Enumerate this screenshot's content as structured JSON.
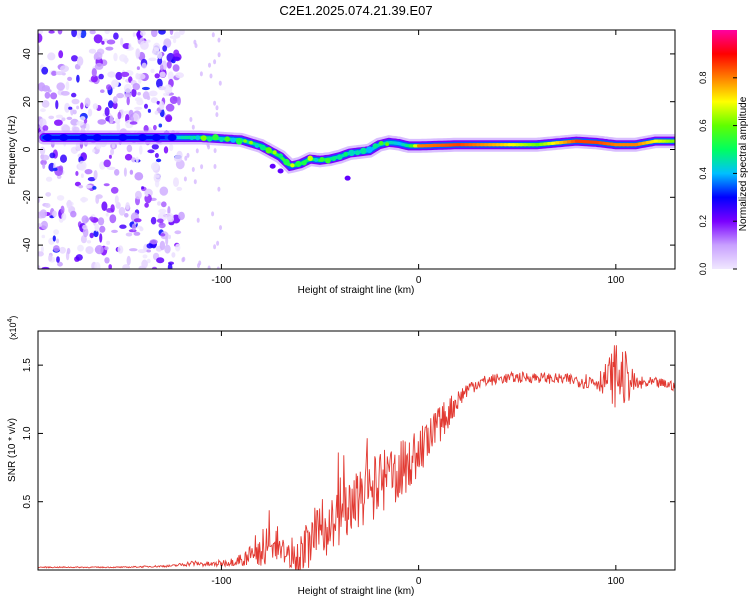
{
  "figure": {
    "title": "C2E1.2025.074.21.39.E07"
  },
  "chart_data": [
    {
      "type": "heatmap",
      "title": "C2E1.2025.074.21.39.E07",
      "xlabel": "Height of straight line (km)",
      "ylabel": "Frequency (Hz)",
      "xlim": [
        -193,
        130
      ],
      "ylim": [
        -50,
        50
      ],
      "xticks": [
        -100,
        0,
        100
      ],
      "xtick_labels": [
        "-100",
        "0",
        "100"
      ],
      "yticks": [
        -40,
        -20,
        0,
        20,
        40
      ],
      "ytick_labels": [
        "-40",
        "-20",
        "0",
        "20",
        "40"
      ],
      "colorbar": {
        "label": "Normalized spectral amplitude",
        "range": [
          0,
          1
        ],
        "ticks": [
          0.0,
          0.2,
          0.4,
          0.6,
          0.8
        ],
        "tick_labels": [
          "0.0",
          "0.2",
          "0.4",
          "0.6",
          "0.8"
        ],
        "colors": [
          "#f0e8ff",
          "#c8a0ff",
          "#7a00ff",
          "#0000ff",
          "#00c0ff",
          "#00ff60",
          "#60ff00",
          "#ffff00",
          "#ff8000",
          "#ff0000",
          "#ff00a0"
        ]
      },
      "ridge": {
        "x": [
          -190,
          -170,
          -150,
          -130,
          -120,
          -110,
          -100,
          -90,
          -80,
          -70,
          -65,
          -60,
          -55,
          -50,
          -45,
          -40,
          -35,
          -30,
          -25,
          -20,
          -15,
          -10,
          -5,
          0,
          20,
          40,
          60,
          80,
          90,
          100,
          110,
          120,
          130
        ],
        "y": [
          5,
          5,
          5,
          5,
          5,
          5,
          4.5,
          4,
          1.5,
          -3,
          -7,
          -6,
          -4,
          -4.5,
          -4,
          -3,
          -1.5,
          -1,
          -0.5,
          2,
          3,
          2.5,
          1.5,
          1.5,
          2,
          2,
          2,
          3.5,
          3,
          2,
          2,
          3.5,
          3.5
        ],
        "amplitude": [
          0.3,
          0.3,
          0.3,
          0.3,
          0.45,
          0.5,
          0.45,
          0.45,
          0.5,
          0.55,
          0.55,
          0.5,
          0.5,
          0.5,
          0.45,
          0.45,
          0.4,
          0.4,
          0.4,
          0.45,
          0.45,
          0.4,
          0.5,
          0.8,
          0.85,
          0.75,
          0.6,
          0.85,
          0.85,
          0.8,
          0.8,
          0.7,
          0.6
        ]
      },
      "noise_region_x": [
        -193,
        -120
      ]
    },
    {
      "type": "line",
      "xlabel": "Height of straight line (km)",
      "ylabel": "SNR (10 * v/v)",
      "y_multiplier": "(x10",
      "y_multiplier_exp": "4",
      "y_multiplier_close": ")",
      "xlim": [
        -193,
        130
      ],
      "ylim": [
        0,
        1.75
      ],
      "xticks": [
        -100,
        0,
        100
      ],
      "xtick_labels": [
        "-100",
        "0",
        "100"
      ],
      "yticks": [
        0.5,
        1.0,
        1.5
      ],
      "ytick_labels": [
        "0.5",
        "1.0",
        "1.5"
      ],
      "color": "#e23a32",
      "series": [
        {
          "name": "SNR",
          "x": [
            -193,
            -150,
            -125,
            -115,
            -105,
            -95,
            -90,
            -85,
            -80,
            -75,
            -70,
            -65,
            -60,
            -55,
            -50,
            -45,
            -40,
            -35,
            -30,
            -25,
            -20,
            -15,
            -10,
            -5,
            0,
            5,
            10,
            15,
            20,
            25,
            30,
            40,
            50,
            60,
            70,
            80,
            90,
            95,
            100,
            105,
            110,
            120,
            130
          ],
          "y": [
            0.02,
            0.02,
            0.03,
            0.05,
            0.04,
            0.06,
            0.08,
            0.1,
            0.13,
            0.16,
            0.14,
            0.1,
            0.12,
            0.2,
            0.26,
            0.33,
            0.38,
            0.45,
            0.5,
            0.57,
            0.62,
            0.68,
            0.72,
            0.78,
            0.86,
            0.95,
            1.05,
            1.15,
            1.25,
            1.33,
            1.37,
            1.4,
            1.41,
            1.41,
            1.4,
            1.39,
            1.38,
            1.4,
            1.43,
            1.4,
            1.36,
            1.37,
            1.35
          ],
          "spread": [
            0.004,
            0.004,
            0.008,
            0.02,
            0.02,
            0.03,
            0.05,
            0.08,
            0.1,
            0.12,
            0.1,
            0.08,
            0.16,
            0.18,
            0.2,
            0.2,
            0.22,
            0.25,
            0.22,
            0.22,
            0.25,
            0.22,
            0.22,
            0.2,
            0.18,
            0.16,
            0.14,
            0.12,
            0.08,
            0.06,
            0.05,
            0.04,
            0.04,
            0.04,
            0.04,
            0.05,
            0.07,
            0.12,
            0.25,
            0.2,
            0.06,
            0.04,
            0.04
          ]
        }
      ]
    }
  ]
}
